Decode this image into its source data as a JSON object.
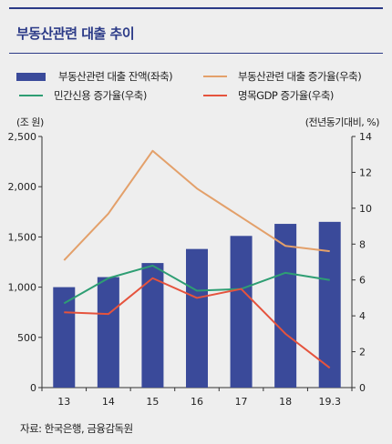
{
  "title": "부동산관련 대출 추이",
  "units": {
    "left": "(조 원)",
    "right": "(전년동기대비, %)"
  },
  "source": "자료: 한국은행, 금융감독원",
  "chart_data": {
    "type": "bar",
    "categories": [
      "13",
      "14",
      "15",
      "16",
      "17",
      "18",
      "19.3"
    ],
    "y_left": {
      "min": 0,
      "max": 2500,
      "ticks": [
        "0",
        "500",
        "1,000",
        "1,500",
        "2,000",
        "2,500"
      ]
    },
    "y_right": {
      "min": 0,
      "max": 14,
      "ticks": [
        "0",
        "2",
        "4",
        "6",
        "8",
        "10",
        "12",
        "14"
      ]
    },
    "series": [
      {
        "name": "부동산관련 대출 잔액(좌축)",
        "type": "bar",
        "axis": "left",
        "color": "#3a4a9a",
        "values": [
          1000,
          1100,
          1240,
          1380,
          1510,
          1630,
          1650
        ]
      },
      {
        "name": "부동산관련 대출 증가율(우축)",
        "type": "line",
        "axis": "right",
        "color": "#e3a06a",
        "values": [
          7.1,
          9.7,
          13.2,
          11.1,
          9.5,
          7.9,
          7.6
        ]
      },
      {
        "name": "민간신용 증가율(우축)",
        "type": "line",
        "axis": "right",
        "color": "#2e9e73",
        "values": [
          4.7,
          6.1,
          6.8,
          5.4,
          5.5,
          6.4,
          6.0
        ]
      },
      {
        "name": "명목GDP 증가율(우축)",
        "type": "line",
        "axis": "right",
        "color": "#e5533d",
        "values": [
          4.2,
          4.1,
          6.1,
          5.0,
          5.5,
          3.0,
          1.1
        ]
      }
    ]
  }
}
